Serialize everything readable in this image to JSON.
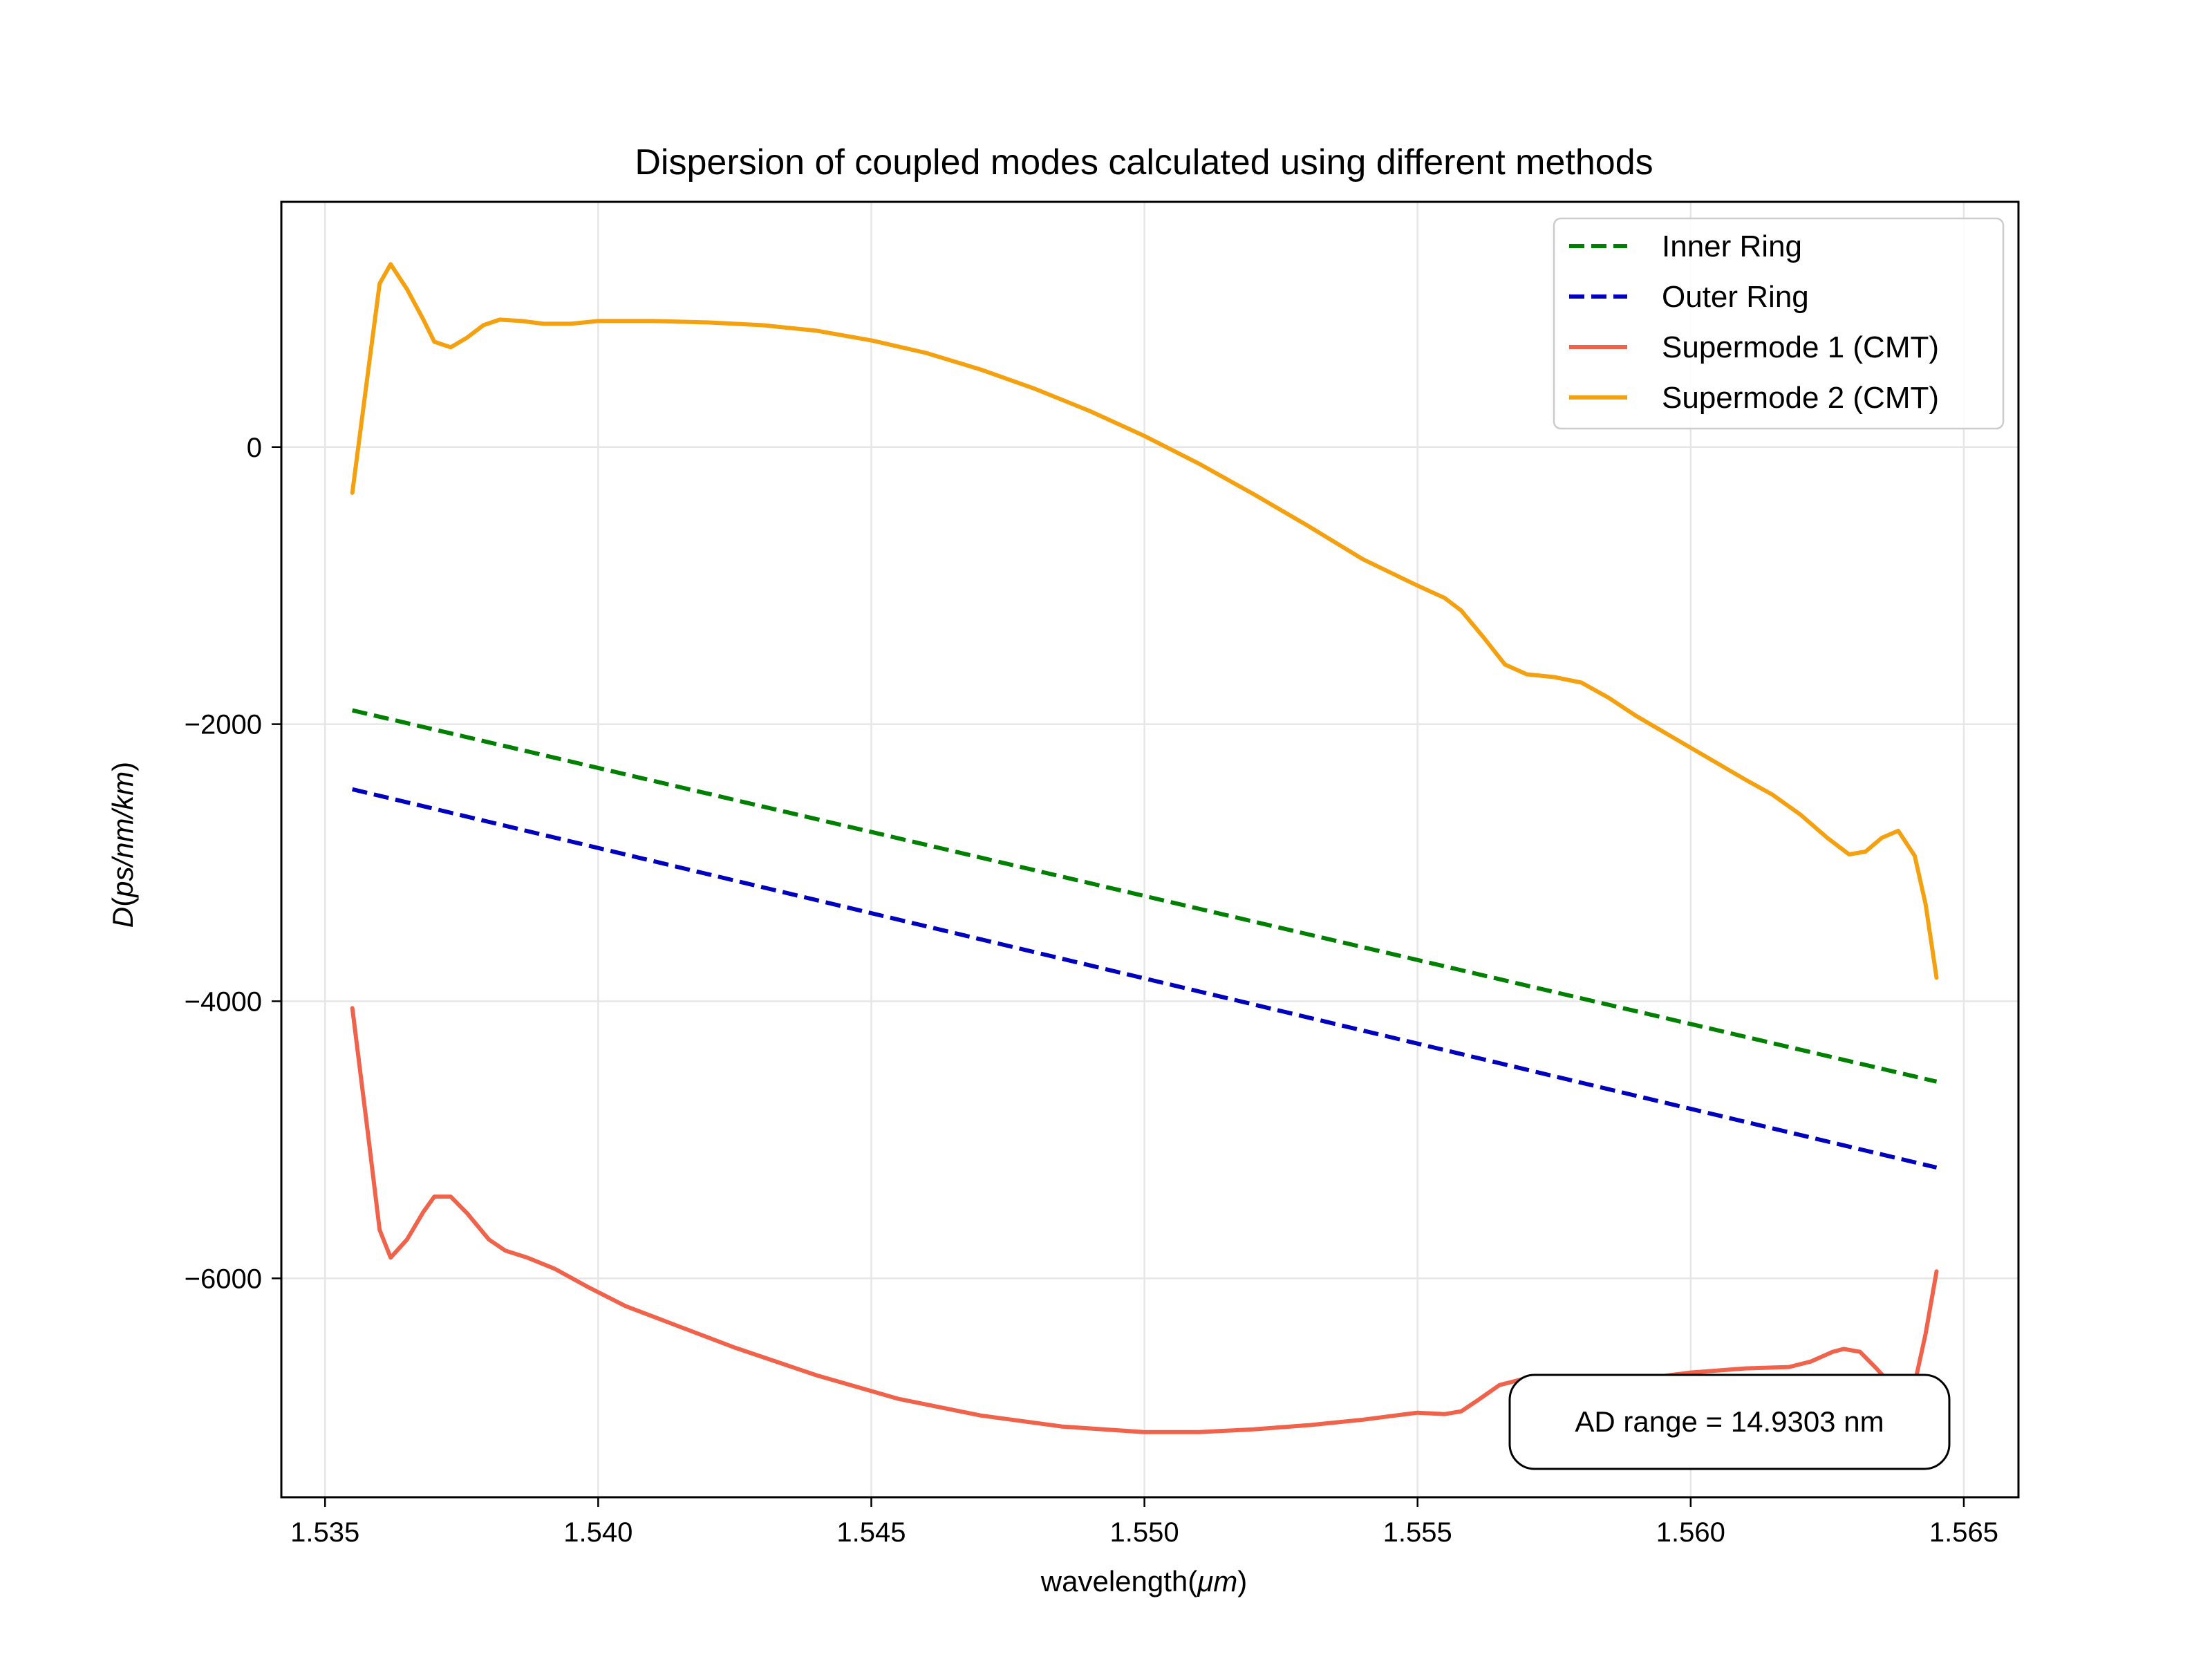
{
  "chart_data": {
    "type": "line",
    "title": "Dispersion of coupled modes calculated using different methods",
    "xlabel_parts": [
      "wavelength(",
      "μm",
      ")"
    ],
    "ylabel_parts": [
      "D(",
      "ps/nm/km",
      ")"
    ],
    "xlim": [
      1.5342,
      1.566
    ],
    "ylim": [
      -7580,
      1770
    ],
    "xticks": [
      1.535,
      1.54,
      1.545,
      1.55,
      1.555,
      1.56,
      1.565
    ],
    "xtick_labels": [
      "1.535",
      "1.540",
      "1.545",
      "1.550",
      "1.555",
      "1.560",
      "1.565"
    ],
    "yticks": [
      0,
      -2000,
      -4000,
      -6000
    ],
    "ytick_labels": [
      "0",
      "−2000",
      "−4000",
      "−6000"
    ],
    "grid": true,
    "legend_position": "top-right",
    "annotation": "AD range = 14.9303 nm",
    "series": [
      {
        "name": "Inner Ring",
        "style": "dashed",
        "color": "#008000",
        "points": [
          [
            1.5355,
            -1900
          ],
          [
            1.5645,
            -4580
          ]
        ]
      },
      {
        "name": "Outer Ring",
        "style": "dashed",
        "color": "#0000bf",
        "points": [
          [
            1.5355,
            -2470
          ],
          [
            1.5645,
            -5200
          ]
        ]
      },
      {
        "name": "Supermode 1 (CMT)",
        "style": "solid",
        "color": "#f0624a",
        "points": [
          [
            1.5355,
            -4050
          ],
          [
            1.5358,
            -5000
          ],
          [
            1.536,
            -5650
          ],
          [
            1.5362,
            -5850
          ],
          [
            1.5365,
            -5720
          ],
          [
            1.5368,
            -5520
          ],
          [
            1.537,
            -5410
          ],
          [
            1.5373,
            -5410
          ],
          [
            1.5376,
            -5530
          ],
          [
            1.538,
            -5720
          ],
          [
            1.5383,
            -5800
          ],
          [
            1.5387,
            -5850
          ],
          [
            1.5392,
            -5930
          ],
          [
            1.5398,
            -6060
          ],
          [
            1.5405,
            -6200
          ],
          [
            1.5415,
            -6350
          ],
          [
            1.5425,
            -6500
          ],
          [
            1.544,
            -6700
          ],
          [
            1.5455,
            -6870
          ],
          [
            1.547,
            -6990
          ],
          [
            1.5485,
            -7070
          ],
          [
            1.55,
            -7110
          ],
          [
            1.551,
            -7110
          ],
          [
            1.552,
            -7090
          ],
          [
            1.553,
            -7060
          ],
          [
            1.554,
            -7020
          ],
          [
            1.5546,
            -6990
          ],
          [
            1.555,
            -6970
          ],
          [
            1.5555,
            -6980
          ],
          [
            1.5558,
            -6960
          ],
          [
            1.5561,
            -6880
          ],
          [
            1.5565,
            -6770
          ],
          [
            1.557,
            -6720
          ],
          [
            1.5575,
            -6780
          ],
          [
            1.558,
            -6820
          ],
          [
            1.559,
            -6730
          ],
          [
            1.56,
            -6680
          ],
          [
            1.561,
            -6650
          ],
          [
            1.5618,
            -6640
          ],
          [
            1.5622,
            -6600
          ],
          [
            1.5626,
            -6530
          ],
          [
            1.5628,
            -6510
          ],
          [
            1.5631,
            -6530
          ],
          [
            1.5634,
            -6650
          ],
          [
            1.5637,
            -6780
          ],
          [
            1.5639,
            -6820
          ],
          [
            1.5641,
            -6760
          ],
          [
            1.5643,
            -6400
          ],
          [
            1.5645,
            -5950
          ]
        ]
      },
      {
        "name": "Supermode 2 (CMT)",
        "style": "solid",
        "color": "#f5a10f",
        "points": [
          [
            1.5355,
            -330
          ],
          [
            1.5358,
            580
          ],
          [
            1.536,
            1180
          ],
          [
            1.5362,
            1320
          ],
          [
            1.5365,
            1140
          ],
          [
            1.5368,
            920
          ],
          [
            1.537,
            760
          ],
          [
            1.5373,
            720
          ],
          [
            1.5376,
            790
          ],
          [
            1.5379,
            880
          ],
          [
            1.5382,
            920
          ],
          [
            1.5386,
            910
          ],
          [
            1.539,
            890
          ],
          [
            1.5395,
            890
          ],
          [
            1.54,
            910
          ],
          [
            1.541,
            910
          ],
          [
            1.542,
            900
          ],
          [
            1.543,
            880
          ],
          [
            1.544,
            840
          ],
          [
            1.545,
            770
          ],
          [
            1.546,
            680
          ],
          [
            1.547,
            560
          ],
          [
            1.548,
            420
          ],
          [
            1.549,
            260
          ],
          [
            1.55,
            80
          ],
          [
            1.551,
            -120
          ],
          [
            1.552,
            -340
          ],
          [
            1.553,
            -570
          ],
          [
            1.554,
            -810
          ],
          [
            1.555,
            -1000
          ],
          [
            1.5555,
            -1090
          ],
          [
            1.5558,
            -1180
          ],
          [
            1.5562,
            -1370
          ],
          [
            1.5566,
            -1570
          ],
          [
            1.557,
            -1640
          ],
          [
            1.5575,
            -1660
          ],
          [
            1.558,
            -1700
          ],
          [
            1.5585,
            -1810
          ],
          [
            1.559,
            -1940
          ],
          [
            1.56,
            -2170
          ],
          [
            1.561,
            -2400
          ],
          [
            1.5615,
            -2510
          ],
          [
            1.562,
            -2650
          ],
          [
            1.5625,
            -2820
          ],
          [
            1.5629,
            -2940
          ],
          [
            1.5632,
            -2920
          ],
          [
            1.5635,
            -2820
          ],
          [
            1.5638,
            -2770
          ],
          [
            1.5641,
            -2950
          ],
          [
            1.5643,
            -3300
          ],
          [
            1.5645,
            -3830
          ]
        ]
      }
    ]
  }
}
